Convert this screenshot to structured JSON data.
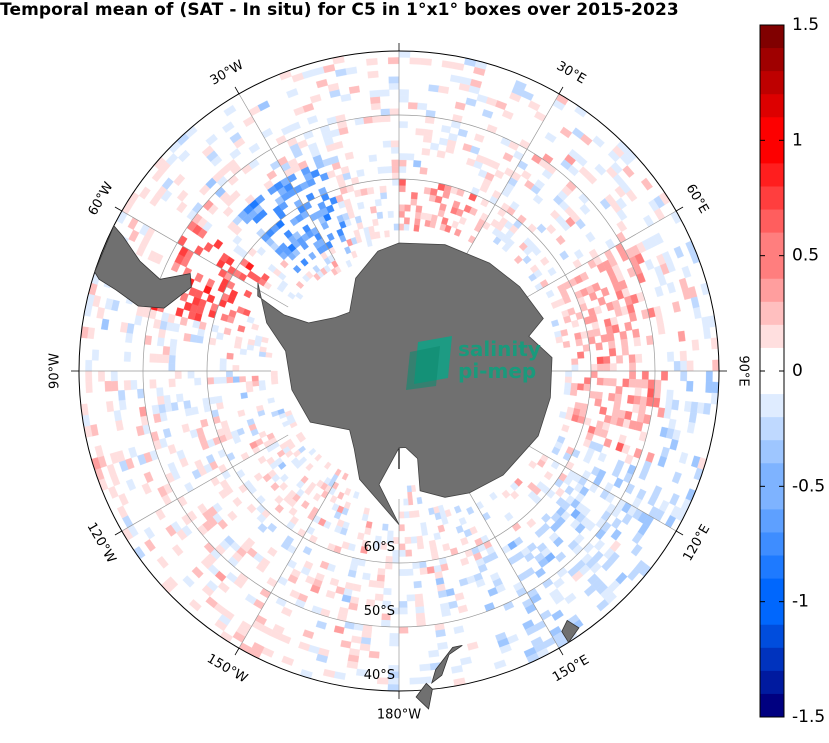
{
  "chart_data": {
    "type": "heatmap",
    "projection": "south-polar-stereographic",
    "title": "Temporal mean of (SAT - In situ) for C5 in 1°x1° boxes over 2015-2023",
    "longitude_labels": [
      "30°W",
      "30°E",
      "60°W",
      "60°E",
      "90°W",
      "90°E",
      "120°W",
      "120°E",
      "150°W",
      "150°E",
      "180°W"
    ],
    "latitude_labels": [
      "60°S",
      "50°S",
      "40°S"
    ],
    "colorbar": {
      "ticks": [
        "1.5",
        "1",
        "0.5",
        "0",
        "-0.5",
        "-1",
        "-1.5"
      ],
      "range": [
        -1.5,
        1.5
      ],
      "colormap": "blue-white-red",
      "colors": {
        "max": "#800000",
        "mid": "#ffffff",
        "min": "#000080"
      }
    },
    "regions": [
      {
        "sector_lon": [
          -75,
          -55
        ],
        "lat": [
          -65,
          -50
        ],
        "mean": 0.6
      },
      {
        "sector_lon": [
          -45,
          -20
        ],
        "lat": [
          -68,
          -55
        ],
        "mean": -0.6
      },
      {
        "sector_lon": [
          0,
          30
        ],
        "lat": [
          -70,
          -60
        ],
        "mean": 0.3
      },
      {
        "sector_lon": [
          60,
          110
        ],
        "lat": [
          -62,
          -48
        ],
        "mean": 0.3
      },
      {
        "sector_lon": [
          90,
          160
        ],
        "lat": [
          -58,
          -40
        ],
        "mean": -0.2
      },
      {
        "sector_lon": [
          -160,
          -100
        ],
        "lat": [
          -60,
          -40
        ],
        "mean": 0.05
      }
    ]
  },
  "logo": {
    "line1": "salinity",
    "line2": "pi-mep"
  }
}
